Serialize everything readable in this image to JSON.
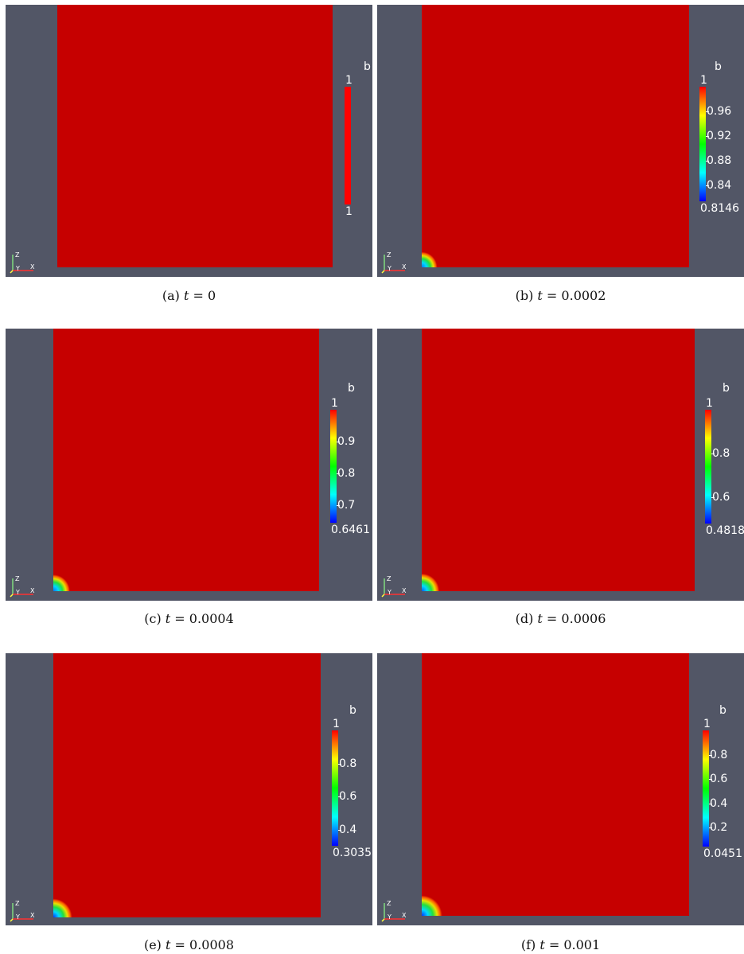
{
  "field_name": "b",
  "colors": {
    "background": "#525666",
    "field": "#c60000",
    "colormap": [
      "#0000ff",
      "#00ffff",
      "#00ff00",
      "#ffff00",
      "#ff0000"
    ]
  },
  "axes_triad_labels": [
    "Z",
    "Y",
    "X"
  ],
  "panels": [
    {
      "label": "(a)",
      "t": "0",
      "range": {
        "min": 1,
        "max": 1
      },
      "top_label": "1",
      "bottom_label": "1",
      "ticks": []
    },
    {
      "label": "(b)",
      "t": "0.0002",
      "range": {
        "min": 0.8146,
        "max": 1
      },
      "top_label": "1",
      "bottom_label": "0.8146",
      "ticks": [
        {
          "v": 0.96,
          "text": "0.96"
        },
        {
          "v": 0.92,
          "text": "0.92"
        },
        {
          "v": 0.88,
          "text": "0.88"
        },
        {
          "v": 0.84,
          "text": "0.84"
        }
      ]
    },
    {
      "label": "(c)",
      "t": "0.0004",
      "range": {
        "min": 0.6461,
        "max": 1
      },
      "top_label": "1",
      "bottom_label": "0.6461",
      "ticks": [
        {
          "v": 0.9,
          "text": "0.9"
        },
        {
          "v": 0.8,
          "text": "0.8"
        },
        {
          "v": 0.7,
          "text": "0.7"
        }
      ]
    },
    {
      "label": "(d)",
      "t": "0.0006",
      "range": {
        "min": 0.4818,
        "max": 1
      },
      "top_label": "1",
      "bottom_label": "0.4818",
      "ticks": [
        {
          "v": 0.8,
          "text": "0.8"
        },
        {
          "v": 0.6,
          "text": "0.6"
        }
      ]
    },
    {
      "label": "(e)",
      "t": "0.0008",
      "range": {
        "min": 0.3035,
        "max": 1
      },
      "top_label": "1",
      "bottom_label": "0.3035",
      "ticks": [
        {
          "v": 0.8,
          "text": "0.8"
        },
        {
          "v": 0.6,
          "text": "0.6"
        },
        {
          "v": 0.4,
          "text": "0.4"
        }
      ]
    },
    {
      "label": "(f)",
      "t": "0.001",
      "range": {
        "min": 0.0451,
        "max": 1
      },
      "top_label": "1",
      "bottom_label": "0.0451",
      "ticks": [
        {
          "v": 0.8,
          "text": "0.8"
        },
        {
          "v": 0.6,
          "text": "0.6"
        },
        {
          "v": 0.4,
          "text": "0.4"
        },
        {
          "v": 0.2,
          "text": "0.2"
        }
      ]
    }
  ]
}
